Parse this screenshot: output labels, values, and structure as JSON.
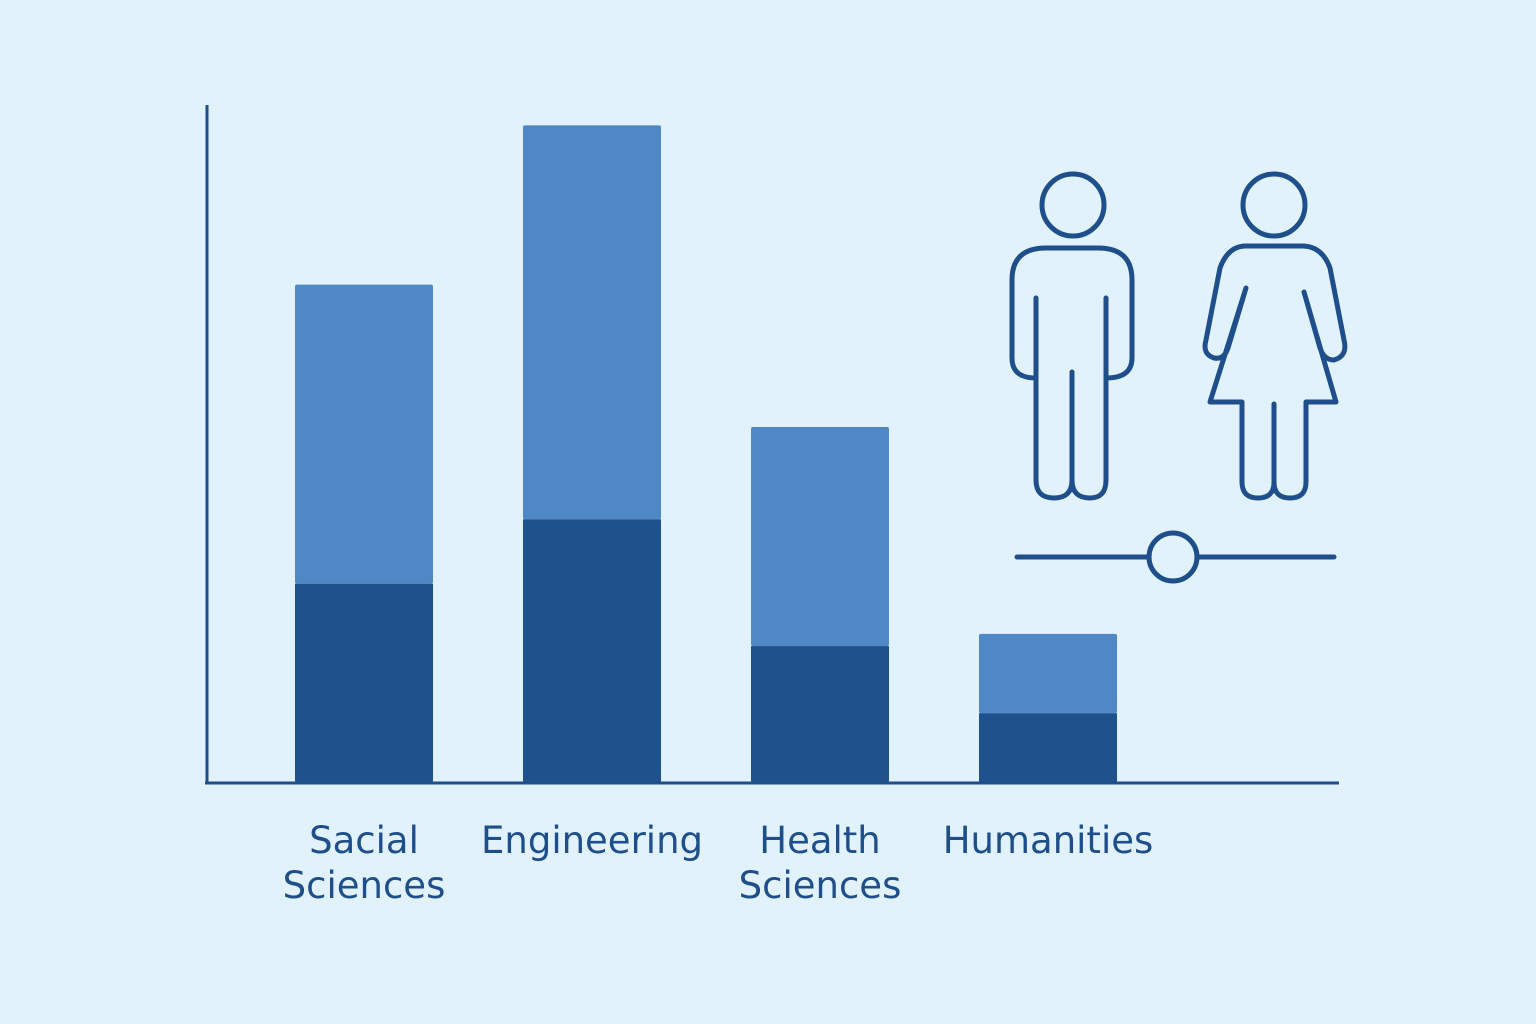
{
  "chart_data": {
    "type": "stacked_bar",
    "categories": [
      "Sacial Sciences",
      "Engineering",
      "Health Sciences",
      "Humanities"
    ],
    "series": [
      {
        "color": "#1f528c",
        "values": [
          29.4,
          38.9,
          20.2,
          10.3
        ]
      },
      {
        "color": "#5088c5",
        "values": [
          44.1,
          58.1,
          32.3,
          11.7
        ]
      }
    ],
    "ylim": [
      0,
      100
    ]
  }
}
